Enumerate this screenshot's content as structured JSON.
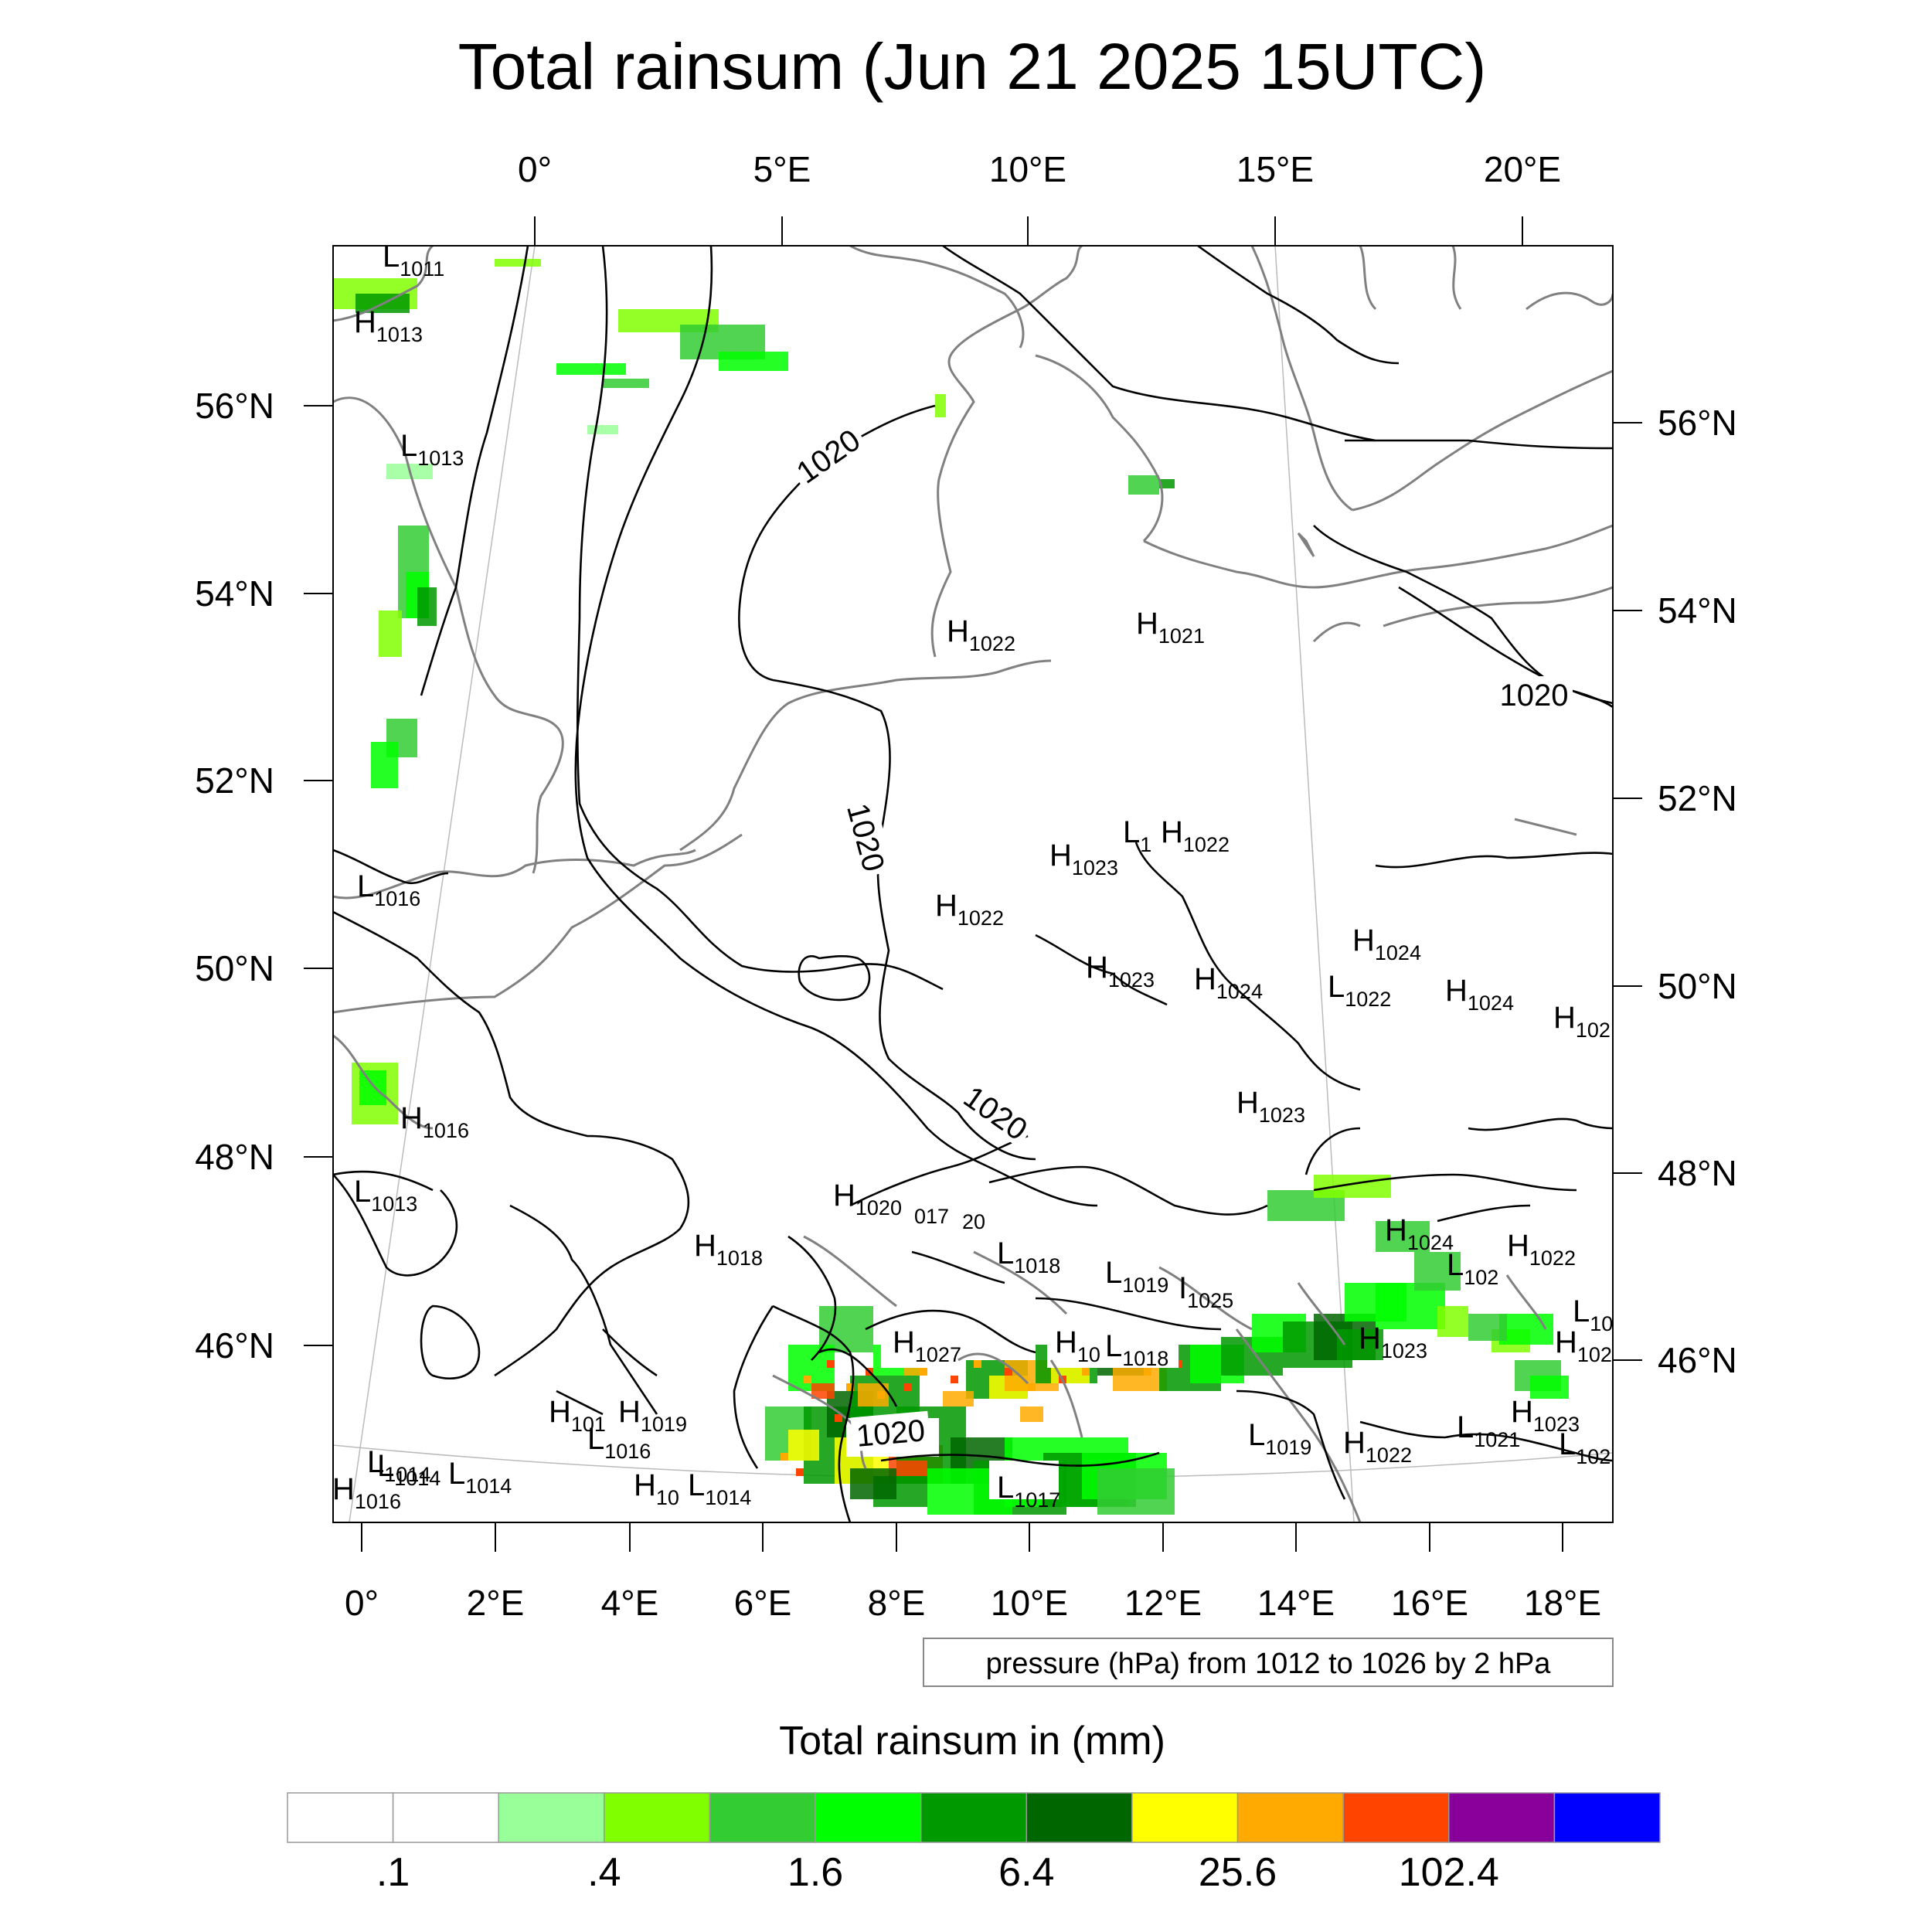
{
  "title": "Total rainsum (Jun 21 2025 15UTC)",
  "top_ticks": [
    "0°",
    "5°E",
    "10°E",
    "15°E",
    "20°E"
  ],
  "bottom_ticks": [
    "0°",
    "2°E",
    "4°E",
    "6°E",
    "8°E",
    "10°E",
    "12°E",
    "14°E",
    "16°E",
    "18°E"
  ],
  "left_ticks": [
    "56°N",
    "54°N",
    "52°N",
    "50°N",
    "48°N",
    "46°N"
  ],
  "right_ticks": [
    "56°N",
    "54°N",
    "52°N",
    "50°N",
    "48°N",
    "46°N"
  ],
  "contour_note": "pressure (hPa) from 1012 to 1026 by 2 hPa",
  "isobar_labels": [
    "1020",
    "1020",
    "1020",
    "1020",
    "1020"
  ],
  "pressure_centers": [
    {
      "letter": "L",
      "value": "1011"
    },
    {
      "letter": "H",
      "value": "1013"
    },
    {
      "letter": "L",
      "value": "1013"
    },
    {
      "letter": "L",
      "value": "1014"
    },
    {
      "letter": "L",
      "value": "1016"
    },
    {
      "letter": "H",
      "value": "1016"
    },
    {
      "letter": "L",
      "value": "1013"
    },
    {
      "letter": "H",
      "value": "1022"
    },
    {
      "letter": "H",
      "value": "1021"
    },
    {
      "letter": "L",
      "value": "1"
    },
    {
      "letter": "H",
      "value": "1022"
    },
    {
      "letter": "H",
      "value": "1023"
    },
    {
      "letter": "H",
      "value": "1022"
    },
    {
      "letter": "H",
      "value": "1024"
    },
    {
      "letter": "H",
      "value": "1023"
    },
    {
      "letter": "H",
      "value": "1024"
    },
    {
      "letter": "L",
      "value": "1022"
    },
    {
      "letter": "H",
      "value": "1024"
    },
    {
      "letter": "H",
      "value": "102"
    },
    {
      "letter": "H",
      "value": "1023"
    },
    {
      "letter": "H",
      "value": "1020"
    },
    {
      "letter": "H",
      "value": "1018"
    },
    {
      "letter": "L",
      "value": "1018"
    },
    {
      "letter": "L",
      "value": "1019"
    },
    {
      "letter": "I",
      "value": "1025"
    },
    {
      "letter": "H",
      "value": "1024"
    },
    {
      "letter": "L",
      "value": "102"
    },
    {
      "letter": "H",
      "value": "1022"
    },
    {
      "letter": "L",
      "value": "10"
    },
    {
      "letter": "H",
      "value": "1027"
    },
    {
      "letter": "H",
      "value": "10"
    },
    {
      "letter": "L",
      "value": "1018"
    },
    {
      "letter": "H",
      "value": "1023"
    },
    {
      "letter": "H",
      "value": "102"
    },
    {
      "letter": "H",
      "value": "101"
    },
    {
      "letter": "H",
      "value": "1019"
    },
    {
      "letter": "L",
      "value": "1016"
    },
    {
      "letter": "L",
      "value": "1014"
    },
    {
      "letter": "L",
      "value": "1014"
    },
    {
      "letter": "H",
      "value": "1016"
    },
    {
      "letter": "H",
      "value": "10"
    },
    {
      "letter": "L",
      "value": "1014"
    },
    {
      "letter": "L",
      "value": "1017"
    },
    {
      "letter": "L",
      "value": "1019"
    },
    {
      "letter": "H",
      "value": "1022"
    },
    {
      "letter": "L",
      "value": "1021"
    },
    {
      "letter": "H",
      "value": "1023"
    },
    {
      "letter": "L",
      "value": "102"
    }
  ],
  "fragment_labels": [
    "017",
    "20"
  ],
  "colorbar": {
    "title": "Total rainsum in (mm)",
    "colors": [
      "#ffffff",
      "#ffffff",
      "#99ff99",
      "#80ff00",
      "#33cc33",
      "#00ff00",
      "#009900",
      "#006600",
      "#ffff00",
      "#ffaa00",
      "#ff4400",
      "#880099",
      "#0000ff"
    ],
    "labels": [
      ".1",
      ".4",
      "1.6",
      "6.4",
      "25.6",
      "102.4"
    ]
  }
}
